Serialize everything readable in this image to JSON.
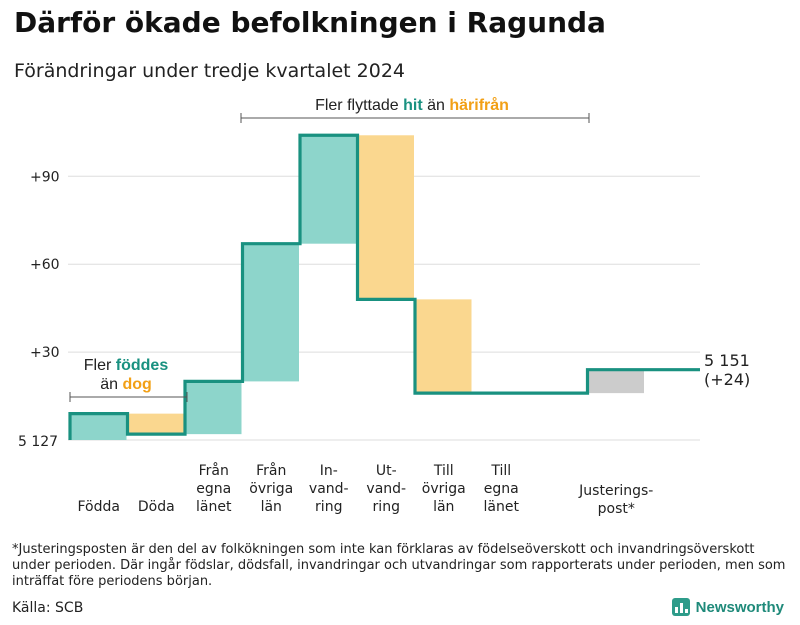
{
  "title": "Därför ökade befolkningen i Ragunda",
  "subtitle": "Förändringar under tredje kvartalet 2024",
  "colors": {
    "increase": "#8dd5cb",
    "decrease": "#fad78f",
    "adjustment": "#cccccc",
    "line": "#199180",
    "hit_text": "#199180",
    "harifran_text": "#f2a016",
    "grid": "#dddddd"
  },
  "chart_data": {
    "type": "waterfall",
    "start_label": "5 127",
    "end_label": [
      "5 151",
      "(+24)"
    ],
    "y_ticks": [
      "+90",
      "+60",
      "+30"
    ],
    "y_tick_values": [
      90,
      60,
      30
    ],
    "ylim": [
      0,
      105
    ],
    "steps": [
      {
        "label": [
          "Födda"
        ],
        "value": 9,
        "kind": "increase"
      },
      {
        "label": [
          "Döda"
        ],
        "value": -7,
        "kind": "decrease"
      },
      {
        "label": [
          "Från",
          "egna",
          "länet"
        ],
        "value": 18,
        "kind": "increase"
      },
      {
        "label": [
          "Från",
          "övriga",
          "län"
        ],
        "value": 47,
        "kind": "increase"
      },
      {
        "label": [
          "In-",
          "vand-",
          "ring"
        ],
        "value": 37,
        "kind": "increase"
      },
      {
        "label": [
          "Ut-",
          "vand-",
          "ring"
        ],
        "value": -56,
        "kind": "decrease"
      },
      {
        "label": [
          "Till",
          "övriga",
          "län"
        ],
        "value": -32,
        "kind": "decrease"
      },
      {
        "label": [
          "Till",
          "egna",
          "länet"
        ],
        "value": 0,
        "kind": "decrease"
      },
      {
        "label": [
          "Justerings-",
          "post*"
        ],
        "value": 8,
        "kind": "adjustment"
      }
    ],
    "annotations": {
      "moves": {
        "prefix": "Fler flyttade ",
        "hit": "hit",
        "middle": " än ",
        "harifran": "härifrån"
      },
      "births": {
        "line1_prefix": "Fler ",
        "line1_bold": "föddes",
        "line2_prefix": "än ",
        "line2_bold": "dog"
      }
    }
  },
  "footnote": "*Justeringsposten är den del av folkökningen som inte kan förklaras av födelseöverskott och invandringsöverskott under perioden. Där ingår födslar, dödsfall, invandringar och utvandringar som rapporterats under perioden, men som inträffat före periodens början.",
  "source": "Källa: SCB",
  "brand": "Newsworthy"
}
